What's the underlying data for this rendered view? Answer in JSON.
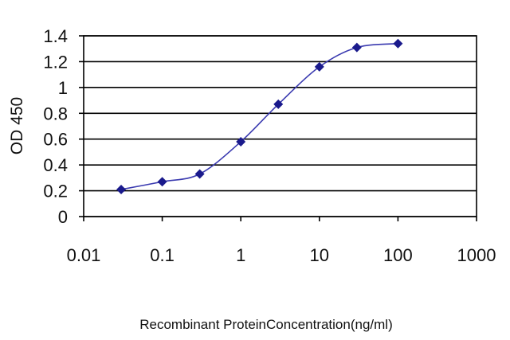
{
  "chart_data": {
    "type": "line",
    "xlabel": "Recombinant ProteinConcentration(ng/ml)",
    "ylabel": "OD 450",
    "x_scale": "log",
    "xlim": [
      0.01,
      1000
    ],
    "ylim": [
      0,
      1.4
    ],
    "x_ticks": [
      "0.01",
      "0.1",
      "1",
      "10",
      "100",
      "1000"
    ],
    "y_ticks": [
      "0",
      "0.2",
      "0.4",
      "0.6",
      "0.8",
      "1",
      "1.2",
      "1.4"
    ],
    "grid": "horizontal",
    "color": "#1a1a8c",
    "series": [
      {
        "x": [
          0.03,
          0.1,
          0.3,
          1,
          3,
          10,
          30,
          100
        ],
        "y": [
          0.21,
          0.27,
          0.33,
          0.58,
          0.87,
          1.16,
          1.31,
          1.34
        ]
      }
    ]
  }
}
